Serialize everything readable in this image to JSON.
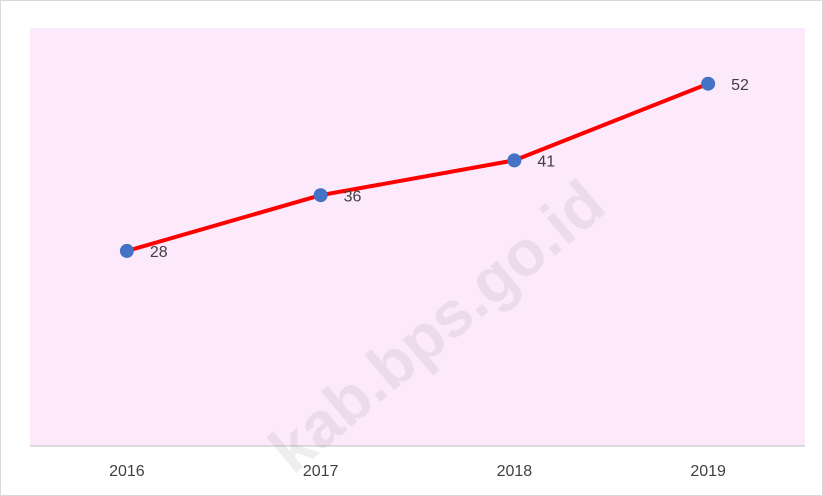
{
  "chart_data": {
    "type": "line",
    "categories": [
      "2016",
      "2017",
      "2018",
      "2019"
    ],
    "series": [
      {
        "name": null,
        "color": "#ff0000",
        "marker_color": "#4472c4",
        "values": [
          28,
          36,
          41,
          52
        ]
      }
    ],
    "ylim": [
      0,
      60
    ],
    "watermark": "kab.bps.go.id"
  }
}
